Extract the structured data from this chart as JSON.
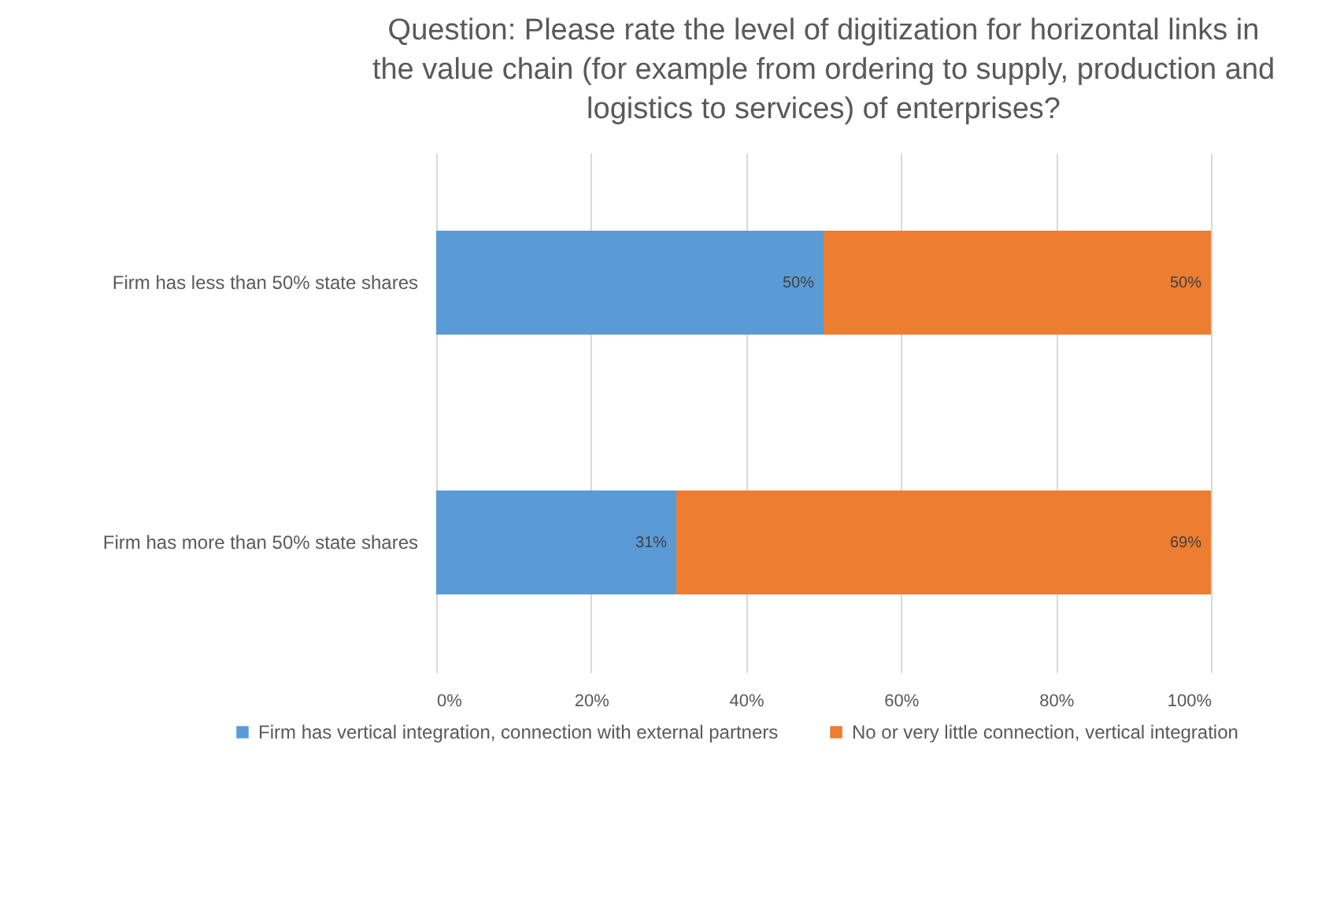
{
  "chart_data": {
    "type": "bar",
    "orientation": "horizontal",
    "stacked": true,
    "title": "Question: Please rate the level of digitization for horizontal links in the value chain (for example from ordering to supply, production and logistics to services) of enterprises?",
    "categories": [
      "Firm has less than 50% state shares",
      "Firm has more than 50% state shares"
    ],
    "series": [
      {
        "name": "Firm has vertical integration, connection with external partners",
        "color": "#5b9bd5",
        "values": [
          50,
          31
        ],
        "value_labels": [
          "50%",
          "31%"
        ]
      },
      {
        "name": "No or very little connection, vertical integration",
        "color": "#ed7d31",
        "values": [
          50,
          69
        ],
        "value_labels": [
          "50%",
          "69%"
        ]
      }
    ],
    "xlim": [
      0,
      100
    ],
    "xticks": [
      {
        "value": 0,
        "label": "0%"
      },
      {
        "value": 20,
        "label": "20%"
      },
      {
        "value": 40,
        "label": "40%"
      },
      {
        "value": 60,
        "label": "60%"
      },
      {
        "value": 80,
        "label": "80%"
      },
      {
        "value": 100,
        "label": "100%"
      }
    ],
    "grid": "x",
    "legend": "bottom"
  }
}
